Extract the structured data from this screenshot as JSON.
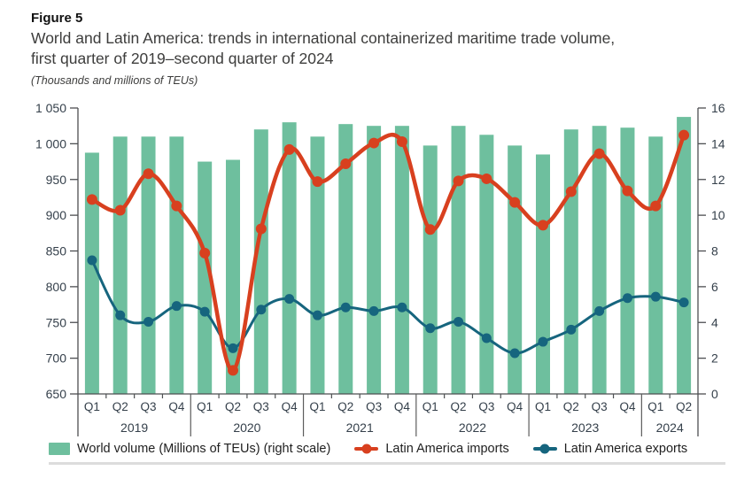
{
  "figure": {
    "label": "Figure 5",
    "title_line1": "World and Latin America: trends in international containerized maritime trade volume,",
    "title_line2": "first quarter of 2019–second quarter of 2024",
    "units_note": "(Thousands and millions of TEUs)"
  },
  "chart_data": {
    "type": "bar+line combo",
    "grid": false,
    "legend_position": "bottom",
    "years": [
      {
        "label": "2019",
        "quarters": [
          "Q1",
          "Q2",
          "Q3",
          "Q4"
        ]
      },
      {
        "label": "2020",
        "quarters": [
          "Q1",
          "Q2",
          "Q3",
          "Q4"
        ]
      },
      {
        "label": "2021",
        "quarters": [
          "Q1",
          "Q2",
          "Q3",
          "Q4"
        ]
      },
      {
        "label": "2022",
        "quarters": [
          "Q1",
          "Q2",
          "Q3",
          "Q4"
        ]
      },
      {
        "label": "2023",
        "quarters": [
          "Q1",
          "Q2",
          "Q3",
          "Q4"
        ]
      },
      {
        "label": "2024",
        "quarters": [
          "Q1",
          "Q2"
        ]
      }
    ],
    "left_axis": {
      "min": 650,
      "max": 1050,
      "step": 50,
      "unit": "Thousands of TEUs",
      "tick_labels": [
        "650",
        "700",
        "750",
        "800",
        "850",
        "900",
        "950",
        "1 000",
        "1 050"
      ]
    },
    "right_axis": {
      "min": 0,
      "max": 16,
      "step": 2,
      "unit": "Millions of TEUs",
      "tick_labels": [
        "0",
        "2",
        "4",
        "6",
        "8",
        "10",
        "12",
        "14",
        "16"
      ]
    },
    "series": [
      {
        "name": "World volume (Millions of TEUs) (right scale)",
        "type": "bar",
        "axis": "right",
        "color": "#6EBF9E",
        "values": [
          13.5,
          14.4,
          14.4,
          14.4,
          13.0,
          13.1,
          14.8,
          15.2,
          14.4,
          15.1,
          15.0,
          15.0,
          13.9,
          15.0,
          14.5,
          13.9,
          13.4,
          14.8,
          15.0,
          14.9,
          14.4,
          15.5
        ]
      },
      {
        "name": "Latin America imports",
        "type": "line",
        "axis": "left",
        "color": "#D8401F",
        "values": [
          922,
          907,
          958,
          913,
          847,
          683,
          881,
          992,
          947,
          972,
          1001,
          1003,
          880,
          948,
          951,
          918,
          886,
          933,
          986,
          934,
          913,
          1012
        ]
      },
      {
        "name": "Latin America exports",
        "type": "line",
        "axis": "left",
        "color": "#16657E",
        "values": [
          837,
          760,
          751,
          773,
          765,
          714,
          768,
          783,
          760,
          771,
          766,
          771,
          742,
          751,
          728,
          707,
          723,
          740,
          766,
          784,
          786,
          778
        ]
      }
    ],
    "colors": {
      "bar": "#6EBF9E",
      "imports": "#D8401F",
      "exports": "#16657E",
      "axis": "#4d4f52",
      "separator": "#5c5c5c",
      "label": "#35404b"
    }
  },
  "legend": [
    {
      "label": "World volume (Millions of TEUs) (right scale)"
    },
    {
      "label": "Latin America imports"
    },
    {
      "label": "Latin America exports"
    }
  ]
}
